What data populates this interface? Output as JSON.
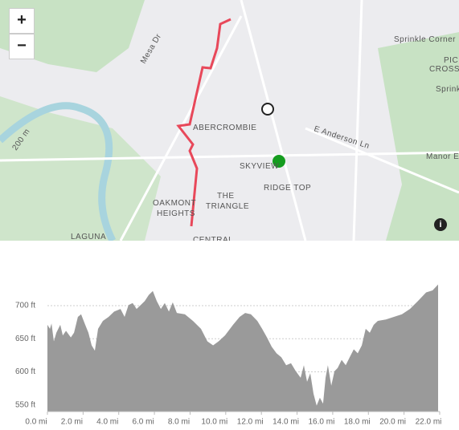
{
  "map": {
    "zoom_in": "+",
    "zoom_out": "−",
    "info": "i",
    "labels": [
      "Sprinkle Corner",
      "PIC",
      "CROSS",
      "Sprinkl",
      "Mesa Dr",
      "ABERCROMBIE",
      "E Anderson Ln",
      "Manor E",
      "SKYVIEW",
      "RIDGE TOP",
      "THE",
      "TRIANGLE",
      "OAKMONT",
      "HEIGHTS",
      "LAGUNA",
      "CENTRAL",
      "200 m"
    ]
  },
  "chart_data": {
    "type": "area",
    "color": "#9a9a9a",
    "x": [
      0.0,
      0.14,
      0.23,
      0.36,
      0.5,
      0.72,
      0.86,
      1.04,
      1.31,
      1.49,
      1.71,
      1.89,
      2.12,
      2.3,
      2.48,
      2.66,
      2.84,
      3.11,
      3.43,
      3.74,
      4.1,
      4.33,
      4.55,
      4.78,
      5.0,
      5.23,
      5.46,
      5.68,
      5.91,
      6.13,
      6.36,
      6.58,
      6.81,
      7.03,
      7.26,
      7.71,
      8.16,
      8.61,
      8.97,
      9.29,
      9.6,
      9.96,
      10.41,
      10.78,
      11.09,
      11.41,
      11.77,
      12.04,
      12.31,
      12.58,
      12.85,
      13.12,
      13.39,
      13.66,
      13.93,
      14.2,
      14.38,
      14.56,
      14.74,
      14.92,
      15.1,
      15.28,
      15.46,
      15.6,
      15.73,
      15.92,
      16.1,
      16.28,
      16.5,
      16.73,
      16.95,
      17.18,
      17.4,
      17.63,
      17.85,
      18.08,
      18.3,
      18.53,
      18.98,
      19.43,
      19.88,
      20.33,
      20.78,
      21.24,
      21.6,
      21.91
    ],
    "values": [
      671,
      665,
      673,
      646,
      659,
      671,
      655,
      662,
      652,
      659,
      683,
      687,
      671,
      659,
      640,
      632,
      665,
      677,
      683,
      691,
      695,
      683,
      701,
      704,
      695,
      701,
      707,
      716,
      722,
      707,
      695,
      704,
      691,
      705,
      689,
      687,
      677,
      665,
      646,
      640,
      646,
      655,
      671,
      683,
      689,
      687,
      677,
      665,
      652,
      638,
      628,
      622,
      610,
      613,
      601,
      591,
      610,
      585,
      598,
      567,
      549,
      561,
      552,
      591,
      610,
      579,
      601,
      606,
      618,
      610,
      622,
      634,
      628,
      640,
      665,
      659,
      671,
      677,
      679,
      683,
      687,
      695,
      707,
      720,
      723,
      732
    ],
    "xlim": [
      0,
      22
    ],
    "ylim": [
      540,
      740
    ],
    "xticks": [
      {
        "value": 0,
        "label": "0.0 mi"
      },
      {
        "value": 2,
        "label": "2.0 mi"
      },
      {
        "value": 4,
        "label": "4.0 mi"
      },
      {
        "value": 6,
        "label": "6.0 mi"
      },
      {
        "value": 8,
        "label": "8.0 mi"
      },
      {
        "value": 10,
        "label": "10.0 mi"
      },
      {
        "value": 12,
        "label": "12.0 mi"
      },
      {
        "value": 14,
        "label": "14.0 mi"
      },
      {
        "value": 16,
        "label": "16.0 mi"
      },
      {
        "value": 18,
        "label": "18.0 mi"
      },
      {
        "value": 20,
        "label": "20.0 mi"
      },
      {
        "value": 22,
        "label": "22.0 mi"
      }
    ],
    "yticks": [
      {
        "value": 550,
        "label": "550 ft"
      },
      {
        "value": 600,
        "label": "600 ft"
      },
      {
        "value": 650,
        "label": "650 ft"
      },
      {
        "value": 700,
        "label": "700 ft"
      }
    ],
    "grid": true
  }
}
